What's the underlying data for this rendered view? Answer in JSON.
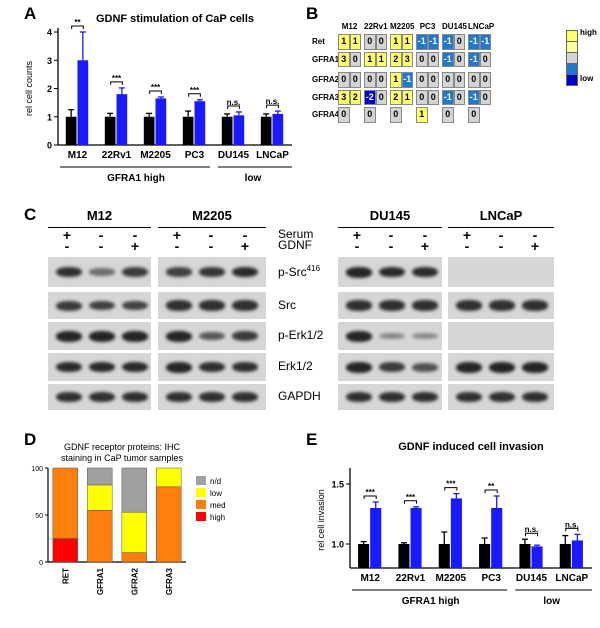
{
  "panels": {
    "A": {
      "label": "A",
      "title": "GDNF stimulation of  CaP cells",
      "ylabel": "rel cell counts",
      "yticks": [
        "0",
        "1",
        "2",
        "3",
        "4"
      ],
      "group_labels": [
        "GFRA1 high",
        "low"
      ]
    },
    "B": {
      "label": "B",
      "cell_lines": [
        "M12",
        "22Rv1",
        "M2205",
        "PC3",
        "DU145",
        "LNCaP"
      ],
      "genes": [
        "Ret",
        "GFRA1",
        "GFRA2",
        "GFRA3",
        "GFRA4"
      ],
      "legend_high": "high",
      "legend_low": "low",
      "values": [
        [
          [
            "1",
            "1"
          ],
          [
            "0",
            "0"
          ],
          [
            "1",
            "1"
          ],
          [
            "-1",
            "-1"
          ],
          [
            "-1",
            "0"
          ],
          [
            "-1",
            "-1"
          ]
        ],
        [
          [
            "3",
            "0"
          ],
          [
            "1",
            "1"
          ],
          [
            "2",
            "3"
          ],
          [
            "0",
            "0"
          ],
          [
            "-1",
            "0"
          ],
          [
            "-1",
            "0"
          ]
        ],
        [
          [
            "0",
            "0"
          ],
          [
            "0",
            "0"
          ],
          [
            "1",
            "-1"
          ],
          [
            "0",
            "0"
          ],
          [
            "0",
            "0"
          ],
          [
            "0",
            "0"
          ]
        ],
        [
          [
            "3",
            "2"
          ],
          [
            "-2",
            "0"
          ],
          [
            "2",
            "1"
          ],
          [
            "0",
            "0"
          ],
          [
            "-1",
            "0"
          ],
          [
            "-1",
            "0"
          ]
        ],
        [
          [
            "0",
            ""
          ],
          [
            "0",
            ""
          ],
          [
            "0",
            ""
          ],
          [
            "1",
            ""
          ],
          [
            "0",
            ""
          ],
          [
            "0",
            ""
          ]
        ]
      ]
    },
    "C": {
      "label": "C",
      "groups": [
        "M12",
        "M2205",
        "DU145",
        "LNCaP"
      ],
      "conditions": [
        {
          "name": "Serum",
          "signs": [
            "+",
            "-",
            "-"
          ]
        },
        {
          "name": "GDNF",
          "signs": [
            "-",
            "-",
            "+"
          ]
        }
      ],
      "proteins": [
        "p-Src",
        "Src",
        "p-Erk1/2",
        "Erk1/2",
        "GAPDH"
      ],
      "psrc_superscript": "416",
      "bands": {
        "M12": [
          [
            0.9,
            0.35,
            0.8
          ],
          [
            0.8,
            0.75,
            0.75
          ],
          [
            1,
            1,
            1
          ],
          [
            0.95,
            0.95,
            0.95
          ],
          [
            0.9,
            0.9,
            0.9
          ]
        ],
        "M2205": [
          [
            0.75,
            0.85,
            0.95
          ],
          [
            0.9,
            0.9,
            0.9
          ],
          [
            1,
            0.55,
            0.8
          ],
          [
            1,
            0.9,
            0.9
          ],
          [
            0.9,
            0.9,
            0.9
          ]
        ],
        "DU145": [
          [
            1,
            0.95,
            0.95
          ],
          [
            0.9,
            0.9,
            0.9
          ],
          [
            1,
            0.12,
            0.1
          ],
          [
            1,
            0.8,
            0.6
          ],
          [
            0.9,
            0.9,
            0.9
          ]
        ],
        "LNCaP": [
          [
            0,
            0,
            0
          ],
          [
            0.9,
            0.9,
            0.9
          ],
          [
            0,
            0,
            0
          ],
          [
            1,
            1,
            1
          ],
          [
            0.9,
            0.9,
            0.9
          ]
        ]
      }
    },
    "D": {
      "label": "D",
      "title_line1": "GDNF receptor proteins: IHC",
      "title_line2": "staining in CaP tumor samples",
      "yticks": [
        "0",
        "50",
        "100"
      ]
    },
    "E": {
      "label": "E",
      "title": "GDNF induced cell invasion",
      "ylabel": "rel cell invasion",
      "yticks": [
        "1.0",
        "1.5"
      ],
      "group_labels": [
        "GFRA1 high",
        "low"
      ]
    }
  },
  "colors": {
    "black": "#000000",
    "blue": "#1a1aff",
    "orange": "#ff7f0e",
    "yellow": "#ffff00",
    "grey": "#a0a0a0",
    "red": "#ff0000",
    "hm_high": "#ffff66",
    "hm_zero": "#d4d4d4",
    "hm_low": "#1f78d1",
    "hm_vlow": "#0000cc"
  },
  "chart_data": [
    {
      "type": "bar",
      "title": "GDNF stimulation of  CaP cells",
      "categories": [
        "M12",
        "22Rv1",
        "M2205",
        "PC3",
        "DU145",
        "LNCaP"
      ],
      "series": [
        {
          "values": [
            1.0,
            1.0,
            1.0,
            1.0,
            1.0,
            1.0
          ],
          "errors": [
            0.25,
            0.12,
            0.12,
            0.2,
            0.1,
            0.1
          ],
          "color": "#000000"
        },
        {
          "values": [
            3.0,
            1.8,
            1.65,
            1.55,
            1.05,
            1.1
          ],
          "errors": [
            1.0,
            0.22,
            0.05,
            0.05,
            0.12,
            0.1
          ],
          "color": "#1a1aff"
        }
      ],
      "significance": [
        "**",
        "***",
        "***",
        "***",
        "n.s.",
        "n.s."
      ],
      "xlabel": "",
      "ylabel": "rel cell counts",
      "ylim": [
        0,
        4
      ]
    },
    {
      "type": "bar",
      "stacked": true,
      "title": "GDNF receptor proteins: IHC staining in CaP tumor samples",
      "categories": [
        "RET",
        "GFRA1",
        "GFRA2",
        "GFRA3"
      ],
      "series": [
        {
          "name": "high",
          "values": [
            25,
            0,
            0,
            0
          ],
          "color": "#ff0000"
        },
        {
          "name": "med",
          "values": [
            75,
            55,
            10,
            80
          ],
          "color": "#ff7f0e"
        },
        {
          "name": "low",
          "values": [
            0,
            27,
            43,
            20
          ],
          "color": "#ffff00"
        },
        {
          "name": "n/d",
          "values": [
            0,
            18,
            47,
            0
          ],
          "color": "#a0a0a0"
        }
      ],
      "ylim": [
        0,
        100
      ],
      "legend": "right"
    },
    {
      "type": "bar",
      "title": "GDNF induced cell invasion",
      "categories": [
        "M12",
        "22Rv1",
        "M2205",
        "PC3",
        "DU145",
        "LNCaP"
      ],
      "series": [
        {
          "values": [
            1.0,
            1.0,
            1.0,
            1.0,
            1.0,
            1.0
          ],
          "errors": [
            0.02,
            0.01,
            0.1,
            0.05,
            0.04,
            0.07
          ],
          "color": "#000000"
        },
        {
          "values": [
            1.3,
            1.3,
            1.38,
            1.3,
            0.98,
            1.03
          ],
          "errors": [
            0.05,
            0.01,
            0.04,
            0.1,
            0.01,
            0.05
          ],
          "color": "#1a1aff"
        }
      ],
      "significance": [
        "***",
        "***",
        "***",
        "**",
        "n.s.",
        "n.s."
      ],
      "xlabel": "",
      "ylabel": "rel cell invasion",
      "ylim": [
        0.8,
        1.6
      ]
    }
  ]
}
